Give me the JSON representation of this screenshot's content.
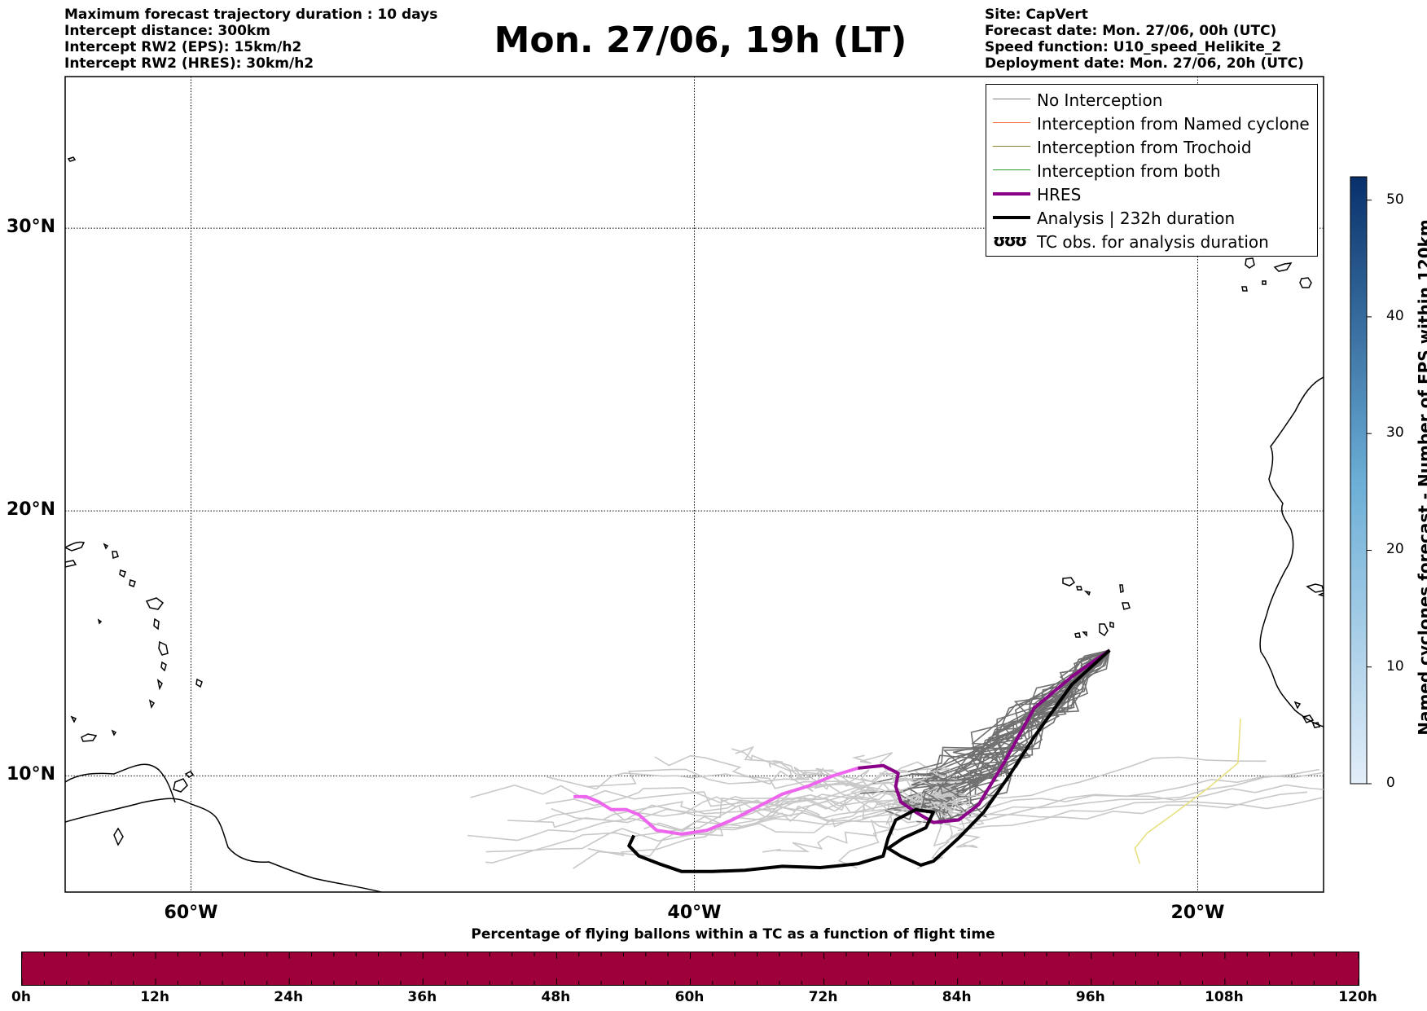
{
  "header": {
    "left_info": [
      "Maximum forecast trajectory duration : 10 days",
      "Intercept distance: 300km",
      "Intercept RW2 (EPS):  15km/h2",
      "Intercept RW2 (HRES): 30km/h2"
    ],
    "title": "Mon. 27/06, 19h (LT)",
    "right_info": [
      "Site: CapVert",
      "Forecast date: Mon. 27/06, 00h (UTC)",
      "Speed function: U10_speed_Helikite_2",
      "Deployment date: Mon. 27/06, 20h (UTC)"
    ]
  },
  "map": {
    "lat_labels": [
      "30°N",
      "20°N",
      "10°N"
    ],
    "lon_labels": [
      "60°W",
      "40°W",
      "20°W"
    ],
    "lat_values": [
      30,
      20,
      10
    ],
    "lon_values": [
      -60,
      -40,
      -20
    ],
    "extent": {
      "lon_min": -65,
      "lon_max": -15,
      "lat_min": 5.5,
      "lat_max": 35
    },
    "launch_site": {
      "lon": -23.5,
      "lat": 14.8
    },
    "hres_track": [
      [
        -23.5,
        14.8
      ],
      [
        -25,
        13.8
      ],
      [
        -26.5,
        12.6
      ],
      [
        -27.7,
        10.5
      ],
      [
        -28.7,
        8.9
      ],
      [
        -29.5,
        8.3
      ],
      [
        -30.5,
        8.2
      ],
      [
        -31.2,
        8.6
      ],
      [
        -31.8,
        9.0
      ],
      [
        -32,
        9.6
      ],
      [
        -31.9,
        10.1
      ],
      [
        -32.5,
        10.4
      ],
      [
        -33.5,
        10.3
      ],
      [
        -34.5,
        10.0
      ],
      [
        -35.5,
        9.6
      ],
      [
        -36.5,
        9.3
      ],
      [
        -37.5,
        8.8
      ],
      [
        -38.5,
        8.3
      ],
      [
        -39.5,
        7.9
      ],
      [
        -40.5,
        7.75
      ],
      [
        -41.5,
        7.9
      ],
      [
        -42.2,
        8.5
      ],
      [
        -42.7,
        8.7
      ],
      [
        -43.3,
        8.7
      ],
      [
        -43.8,
        9.0
      ],
      [
        -44.3,
        9.2
      ],
      [
        -44.8,
        9.2
      ]
    ],
    "hres_transition_index": 12,
    "analysis_track": [
      [
        -23.5,
        14.8
      ],
      [
        -25,
        13.5
      ],
      [
        -26.5,
        11.5
      ],
      [
        -27.5,
        10.0
      ],
      [
        -28.5,
        8.6
      ],
      [
        -29.5,
        7.6
      ],
      [
        -30.5,
        6.7
      ],
      [
        -31.0,
        6.55
      ],
      [
        -31.8,
        6.9
      ],
      [
        -32.3,
        7.2
      ],
      [
        -31.7,
        7.6
      ],
      [
        -30.8,
        8.0
      ],
      [
        -30.5,
        8.6
      ],
      [
        -31.2,
        8.7
      ],
      [
        -32,
        8.3
      ],
      [
        -32.3,
        7.6
      ],
      [
        -32.5,
        6.9
      ],
      [
        -33.5,
        6.6
      ],
      [
        -35,
        6.45
      ],
      [
        -36.5,
        6.5
      ],
      [
        -38,
        6.35
      ],
      [
        -39.3,
        6.3
      ],
      [
        -40.5,
        6.3
      ],
      [
        -41.4,
        6.6
      ],
      [
        -42.2,
        6.9
      ],
      [
        -42.6,
        7.3
      ],
      [
        -42.4,
        7.7
      ]
    ],
    "legend": {
      "items": [
        {
          "label": "No Interception",
          "color": "#808080",
          "width": 1.5
        },
        {
          "label": "Interception from Named cyclone",
          "color": "#f07040",
          "width": 1.5
        },
        {
          "label": "Interception from Trochoid",
          "color": "#8a8030",
          "width": 1.5
        },
        {
          "label": "Interception from both",
          "color": "#2a9a2a",
          "width": 1.5
        },
        {
          "label": "HRES",
          "color": "#8a0088",
          "width": 4
        },
        {
          "label": "Analysis | 232h duration",
          "color": "#000000",
          "width": 4
        },
        {
          "label": "TC obs. for analysis duration",
          "color": "#000000",
          "width": 0,
          "symbol": "ʊʊʊ"
        }
      ]
    },
    "colors": {
      "hres_near": "#8a0088",
      "hres_far": "#ee66ee",
      "ens_dark": "#707070",
      "ens_light": "#c8c8c8",
      "trochoid_light": "#e8e080"
    }
  },
  "colorbar": {
    "title": "Named cyclones forecast - Number of EPS within 120km",
    "ticks": [
      "50",
      "40",
      "30",
      "20",
      "10",
      "0"
    ],
    "tick_values": [
      50,
      40,
      30,
      20,
      10,
      0
    ],
    "range": [
      0,
      52
    ],
    "color_low": "#e3eef9",
    "color_high": "#08306b"
  },
  "bottom_bar": {
    "title": "Percentage of flying ballons within a TC as a function of flight time",
    "ticks": [
      "0h",
      "12h",
      "24h",
      "36h",
      "48h",
      "60h",
      "72h",
      "84h",
      "96h",
      "108h",
      "120h"
    ],
    "tick_hours": [
      0,
      12,
      24,
      36,
      48,
      60,
      72,
      84,
      96,
      108,
      120
    ],
    "color": "#9e003a"
  }
}
